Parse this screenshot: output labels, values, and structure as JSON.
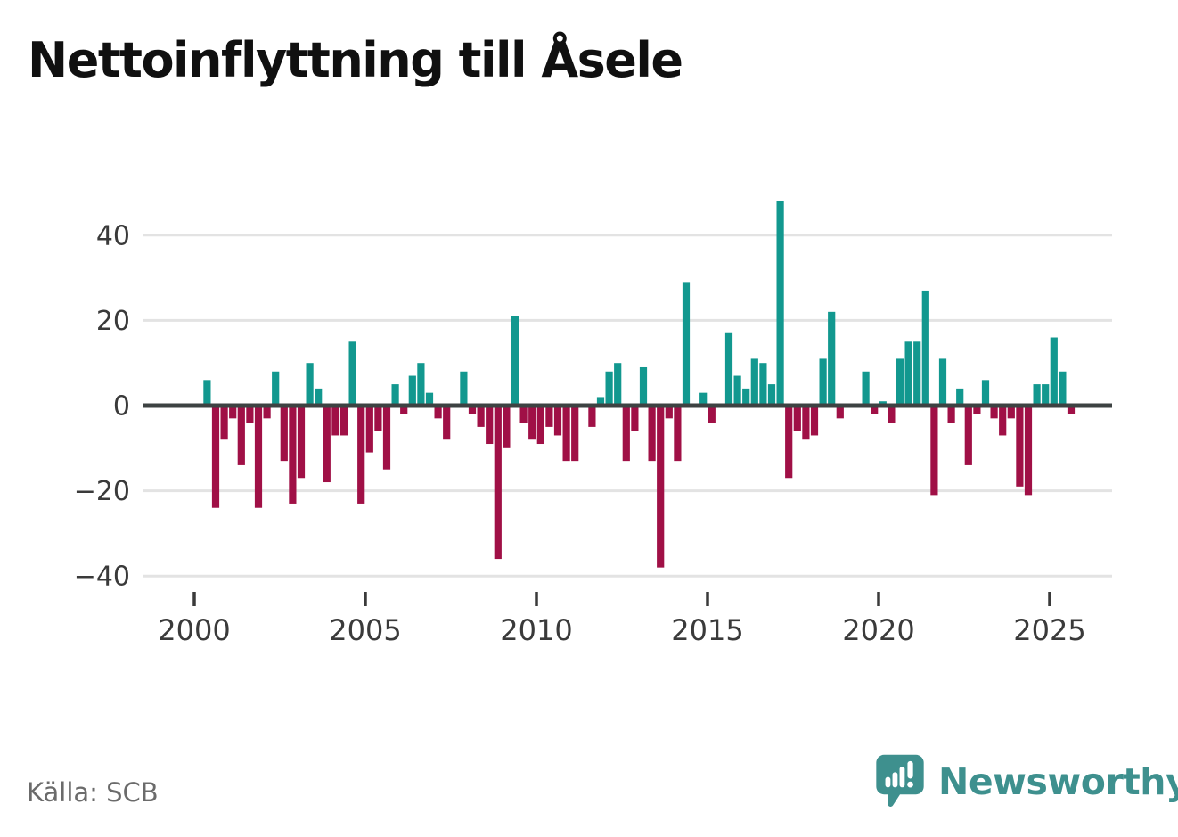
{
  "title": "Nettoinflyttning till Åsele",
  "source": "Källa: SCB",
  "brand": {
    "name": "Newsworthy",
    "color": "#3e908e"
  },
  "chart_data": {
    "type": "bar",
    "title": "Nettoinflyttning till Åsele",
    "frequency": "quarterly",
    "x_start": {
      "year": 2000,
      "quarter": 1
    },
    "x_end": {
      "year": 2025,
      "quarter": 3
    },
    "values": [
      0,
      6,
      -24,
      -8,
      -3,
      -14,
      -4,
      -24,
      -3,
      8,
      -13,
      -23,
      -17,
      10,
      4,
      -18,
      -7,
      -7,
      15,
      -23,
      -11,
      -6,
      -15,
      5,
      -2,
      7,
      10,
      3,
      -3,
      -8,
      0,
      8,
      -2,
      -5,
      -9,
      -36,
      -10,
      21,
      -4,
      -8,
      -9,
      -5,
      -7,
      -13,
      -13,
      0,
      -5,
      2,
      8,
      10,
      -13,
      -6,
      9,
      -13,
      -38,
      -3,
      -13,
      29,
      0,
      3,
      -4,
      0,
      17,
      7,
      4,
      11,
      10,
      5,
      48,
      -17,
      -6,
      -8,
      -7,
      11,
      22,
      -3,
      0,
      0,
      8,
      -2,
      1,
      -4,
      11,
      15,
      15,
      27,
      -21,
      11,
      -4,
      4,
      -14,
      -2,
      6,
      -3,
      -7,
      -3,
      -19,
      -21,
      5,
      5,
      16,
      8,
      -2
    ],
    "yticks": [
      40,
      20,
      0,
      -20,
      -40
    ],
    "xticks": [
      2000,
      2005,
      2010,
      2015,
      2020,
      2025
    ],
    "ylim": [
      -45,
      52
    ],
    "grid": true,
    "legend": "none",
    "colors": {
      "positive": "#12988f",
      "negative": "#a01046",
      "zero_line": "#3d4242",
      "gridline": "#e3e3e3",
      "axis_text": "#3a3a3a",
      "tick_mark": "#3a3a3a"
    }
  }
}
